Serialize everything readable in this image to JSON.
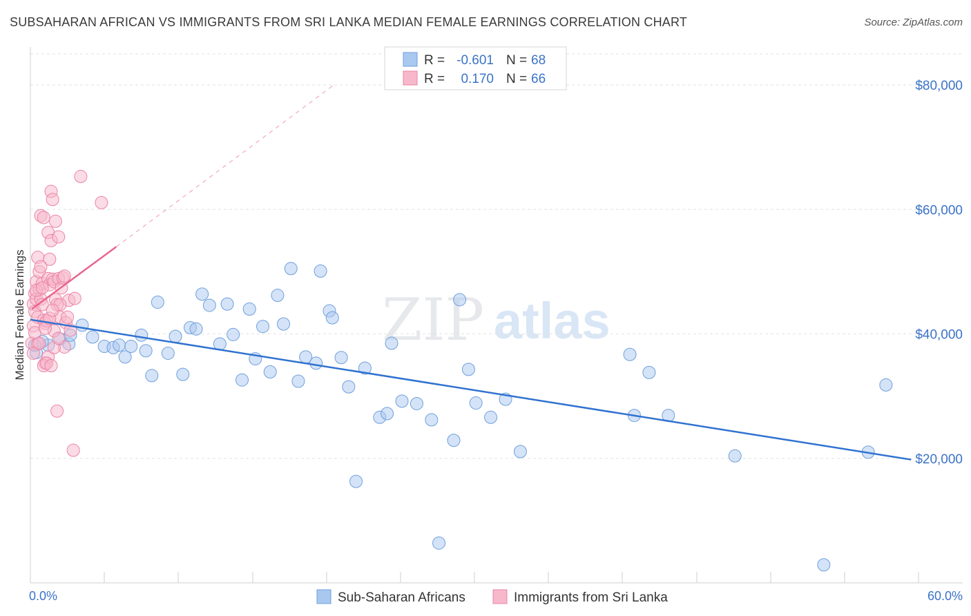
{
  "chart_data": {
    "type": "scatter",
    "title": "SUBSAHARAN AFRICAN VS IMMIGRANTS FROM SRI LANKA MEDIAN FEMALE EARNINGS CORRELATION CHART",
    "source": "Source: ZipAtlas.com",
    "ylabel": "Median Female Earnings",
    "xlim": [
      0,
      60
    ],
    "ylim": [
      0,
      85000
    ],
    "x_tick_labels": [
      "0.0%",
      "60.0%"
    ],
    "y_ticks": [
      20000,
      40000,
      60000,
      80000
    ],
    "y_tick_labels": [
      "$20,000",
      "$40,000",
      "$60,000",
      "$80,000"
    ],
    "watermark": [
      "ZIP",
      "atlas"
    ],
    "legend": {
      "rows": [
        {
          "r_label": "R =",
          "r_value": "-0.601",
          "n_label": "N =",
          "n_value": "68"
        },
        {
          "r_label": "R =",
          "r_value": "0.170",
          "n_label": "N =",
          "n_value": "66"
        }
      ]
    },
    "series": [
      {
        "name": "Sub-Saharan Africans",
        "color": "#a9c8ef",
        "stroke": "#6f9fdc",
        "line_color": "#2f72d0",
        "trend": {
          "x1": 0,
          "y1": 42300,
          "x2": 59.5,
          "y2": 19800
        },
        "points": [
          [
            0.4,
            37000
          ],
          [
            1.2,
            38200
          ],
          [
            0.8,
            38800
          ],
          [
            2.0,
            39200
          ],
          [
            2.6,
            38400
          ],
          [
            3.5,
            41400
          ],
          [
            4.2,
            39500
          ],
          [
            5.0,
            38000
          ],
          [
            5.6,
            37800
          ],
          [
            6.0,
            38200
          ],
          [
            6.4,
            36300
          ],
          [
            6.8,
            38000
          ],
          [
            7.5,
            39800
          ],
          [
            7.8,
            37300
          ],
          [
            8.2,
            33300
          ],
          [
            8.6,
            45100
          ],
          [
            9.3,
            36900
          ],
          [
            9.8,
            39600
          ],
          [
            10.3,
            33500
          ],
          [
            10.8,
            41000
          ],
          [
            11.2,
            40800
          ],
          [
            11.6,
            46400
          ],
          [
            12.1,
            44600
          ],
          [
            12.8,
            38400
          ],
          [
            13.3,
            44800
          ],
          [
            13.7,
            39900
          ],
          [
            14.3,
            32600
          ],
          [
            14.8,
            44000
          ],
          [
            15.2,
            36000
          ],
          [
            15.7,
            41200
          ],
          [
            16.2,
            33900
          ],
          [
            16.7,
            46200
          ],
          [
            17.1,
            41600
          ],
          [
            17.6,
            50500
          ],
          [
            18.1,
            32400
          ],
          [
            18.6,
            36300
          ],
          [
            19.3,
            35300
          ],
          [
            19.6,
            50100
          ],
          [
            20.2,
            43700
          ],
          [
            20.4,
            42600
          ],
          [
            21.0,
            36200
          ],
          [
            21.5,
            31500
          ],
          [
            22.0,
            16300
          ],
          [
            22.6,
            34500
          ],
          [
            23.6,
            26600
          ],
          [
            24.1,
            27200
          ],
          [
            24.4,
            38500
          ],
          [
            25.1,
            29200
          ],
          [
            26.1,
            28800
          ],
          [
            27.1,
            26200
          ],
          [
            27.6,
            6400
          ],
          [
            28.6,
            22900
          ],
          [
            29.0,
            45500
          ],
          [
            29.6,
            34300
          ],
          [
            30.1,
            28900
          ],
          [
            31.1,
            26600
          ],
          [
            32.1,
            29500
          ],
          [
            33.1,
            21100
          ],
          [
            40.5,
            36700
          ],
          [
            40.8,
            26900
          ],
          [
            41.8,
            33800
          ],
          [
            43.1,
            26900
          ],
          [
            47.6,
            20400
          ],
          [
            53.6,
            2900
          ],
          [
            56.6,
            21000
          ],
          [
            57.8,
            31800
          ],
          [
            0.3,
            38200
          ],
          [
            2.7,
            39800
          ]
        ]
      },
      {
        "name": "Immigrants from Sri Lanka",
        "color": "#f7b8cc",
        "stroke": "#ea84a5",
        "line_color": "#e8658f",
        "trend": {
          "x1": 0.1,
          "y1": 44000,
          "x2": 5.8,
          "y2": 54000
        },
        "trend_dashed": {
          "x1": 5.8,
          "y1": 54000,
          "x2": 20.5,
          "y2": 80000
        },
        "points": [
          [
            0.1,
            38500
          ],
          [
            0.2,
            44800
          ],
          [
            0.2,
            41300
          ],
          [
            0.3,
            43600
          ],
          [
            0.3,
            46500
          ],
          [
            0.4,
            48400
          ],
          [
            0.4,
            45600
          ],
          [
            0.5,
            38400
          ],
          [
            0.5,
            52300
          ],
          [
            0.5,
            42700
          ],
          [
            0.6,
            50000
          ],
          [
            0.6,
            47100
          ],
          [
            0.7,
            59000
          ],
          [
            0.7,
            45600
          ],
          [
            0.8,
            44700
          ],
          [
            0.8,
            48100
          ],
          [
            0.9,
            42200
          ],
          [
            0.9,
            58700
          ],
          [
            1.0,
            35300
          ],
          [
            1.0,
            41700
          ],
          [
            1.1,
            42100
          ],
          [
            1.2,
            36300
          ],
          [
            1.2,
            56300
          ],
          [
            1.2,
            48900
          ],
          [
            1.3,
            52000
          ],
          [
            1.3,
            47900
          ],
          [
            1.4,
            55000
          ],
          [
            1.4,
            62900
          ],
          [
            1.5,
            61600
          ],
          [
            1.5,
            48800
          ],
          [
            1.6,
            48400
          ],
          [
            1.6,
            40500
          ],
          [
            1.7,
            58100
          ],
          [
            1.7,
            45500
          ],
          [
            1.8,
            44700
          ],
          [
            1.8,
            27600
          ],
          [
            1.9,
            55600
          ],
          [
            1.9,
            48900
          ],
          [
            2.0,
            42700
          ],
          [
            2.1,
            47400
          ],
          [
            2.2,
            49000
          ],
          [
            2.3,
            37900
          ],
          [
            2.4,
            41800
          ],
          [
            2.5,
            42700
          ],
          [
            2.6,
            45400
          ],
          [
            2.7,
            40600
          ],
          [
            2.9,
            21300
          ],
          [
            3.0,
            45700
          ],
          [
            3.4,
            65300
          ],
          [
            4.8,
            61100
          ],
          [
            0.3,
            40200
          ],
          [
            0.6,
            38500
          ],
          [
            0.9,
            34900
          ],
          [
            1.1,
            35300
          ],
          [
            1.4,
            34900
          ],
          [
            1.6,
            37800
          ],
          [
            0.4,
            47000
          ],
          [
            0.7,
            50800
          ],
          [
            1.0,
            40900
          ],
          [
            1.3,
            42500
          ],
          [
            2.0,
            44700
          ],
          [
            2.3,
            49300
          ],
          [
            0.2,
            36900
          ],
          [
            1.9,
            39300
          ],
          [
            0.8,
            47400
          ],
          [
            1.5,
            43800
          ]
        ]
      }
    ]
  }
}
